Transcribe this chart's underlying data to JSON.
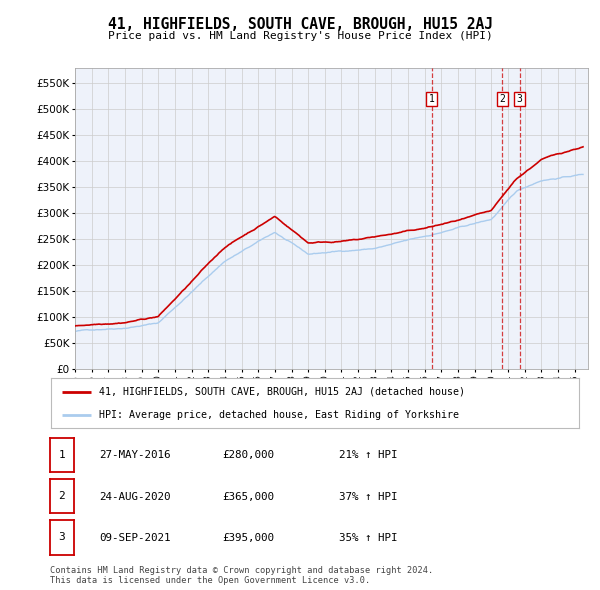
{
  "title": "41, HIGHFIELDS, SOUTH CAVE, BROUGH, HU15 2AJ",
  "subtitle": "Price paid vs. HM Land Registry's House Price Index (HPI)",
  "ylabel_ticks": [
    "£0",
    "£50K",
    "£100K",
    "£150K",
    "£200K",
    "£250K",
    "£300K",
    "£350K",
    "£400K",
    "£450K",
    "£500K",
    "£550K"
  ],
  "ytick_values": [
    0,
    50000,
    100000,
    150000,
    200000,
    250000,
    300000,
    350000,
    400000,
    450000,
    500000,
    550000
  ],
  "ylim": [
    0,
    580000
  ],
  "xlim_start": 1995.0,
  "xlim_end": 2025.8,
  "sale_dates": [
    2016.41,
    2020.65,
    2021.69
  ],
  "sale_labels": [
    "1",
    "2",
    "3"
  ],
  "sale_prices": [
    280000,
    365000,
    395000
  ],
  "legend_property": "41, HIGHFIELDS, SOUTH CAVE, BROUGH, HU15 2AJ (detached house)",
  "legend_hpi": "HPI: Average price, detached house, East Riding of Yorkshire",
  "table_rows": [
    {
      "num": "1",
      "date": "27-MAY-2016",
      "price": "£280,000",
      "change": "21% ↑ HPI"
    },
    {
      "num": "2",
      "date": "24-AUG-2020",
      "price": "£365,000",
      "change": "37% ↑ HPI"
    },
    {
      "num": "3",
      "date": "09-SEP-2021",
      "price": "£395,000",
      "change": "35% ↑ HPI"
    }
  ],
  "footnote": "Contains HM Land Registry data © Crown copyright and database right 2024.\nThis data is licensed under the Open Government Licence v3.0.",
  "property_color": "#cc0000",
  "hpi_color": "#aaccee",
  "grid_color": "#cccccc",
  "background_color": "#ffffff",
  "plot_bg_color": "#eef2fa"
}
